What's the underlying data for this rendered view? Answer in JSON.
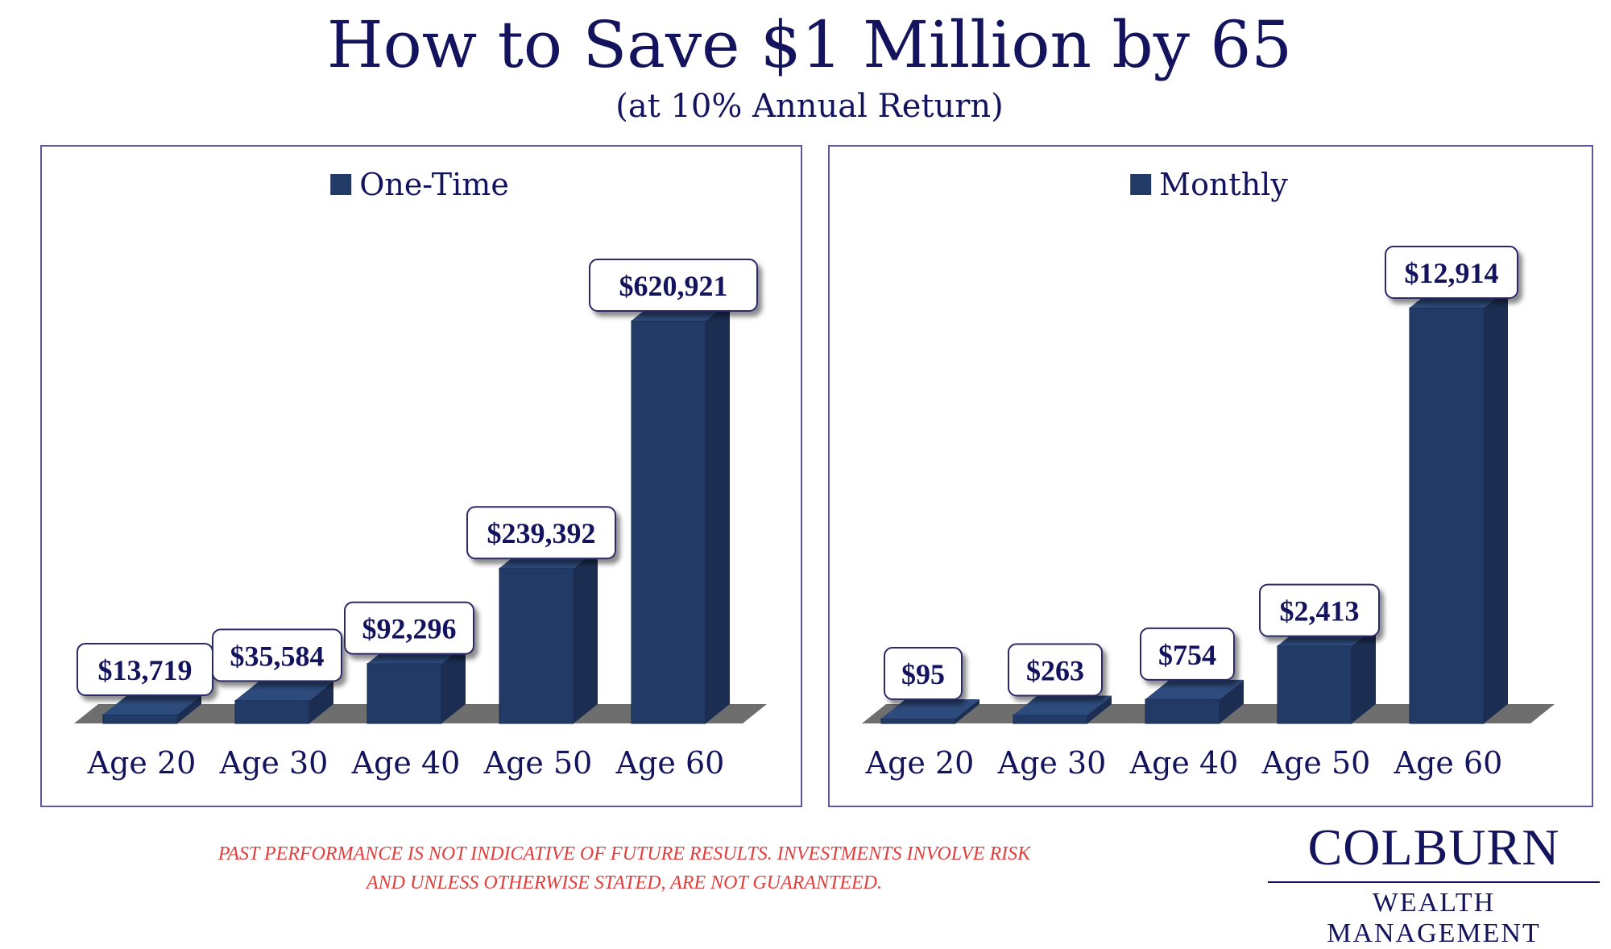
{
  "title": "How to Save $1 Million by 65",
  "subtitle": "(at 10% Annual Return)",
  "disclaimer": {
    "line1": "PAST PERFORMANCE IS NOT INDICATIVE OF FUTURE RESULTS. INVESTMENTS INVOLVE RISK",
    "line2": "AND UNLESS OTHERWISE STATED, ARE NOT GUARANTEED."
  },
  "brand": {
    "name": "COLBURN",
    "tagline": "WEALTH MANAGEMENT"
  },
  "colors": {
    "bar_front": "#223a66",
    "bar_side": "#1b2e52",
    "bar_top": "#2d4b7c",
    "floor": "#6e6e6e",
    "title": "#14145e",
    "label_text": "#14145e",
    "disclaimer": "#e23c3c"
  },
  "chart_data": [
    {
      "type": "bar",
      "categories": [
        "Age 20",
        "Age 30",
        "Age 40",
        "Age 50",
        "Age 60"
      ],
      "series": [
        {
          "name": "One-Time",
          "values": [
            13719,
            35584,
            92296,
            239392,
            620921
          ]
        }
      ],
      "data_labels": [
        "$13,719",
        "$35,584",
        "$92,296",
        "$239,392",
        "$620,921"
      ],
      "legend": "top-center",
      "grid": false,
      "ylim": [
        0,
        620921
      ]
    },
    {
      "type": "bar",
      "categories": [
        "Age 20",
        "Age 30",
        "Age 40",
        "Age 50",
        "Age 60"
      ],
      "series": [
        {
          "name": "Monthly",
          "values": [
            95,
            263,
            754,
            2413,
            12914
          ]
        }
      ],
      "data_labels": [
        "$95",
        "$263",
        "$754",
        "$2,413",
        "$12,914"
      ],
      "legend": "top-center",
      "grid": false,
      "ylim": [
        0,
        12914
      ]
    }
  ]
}
